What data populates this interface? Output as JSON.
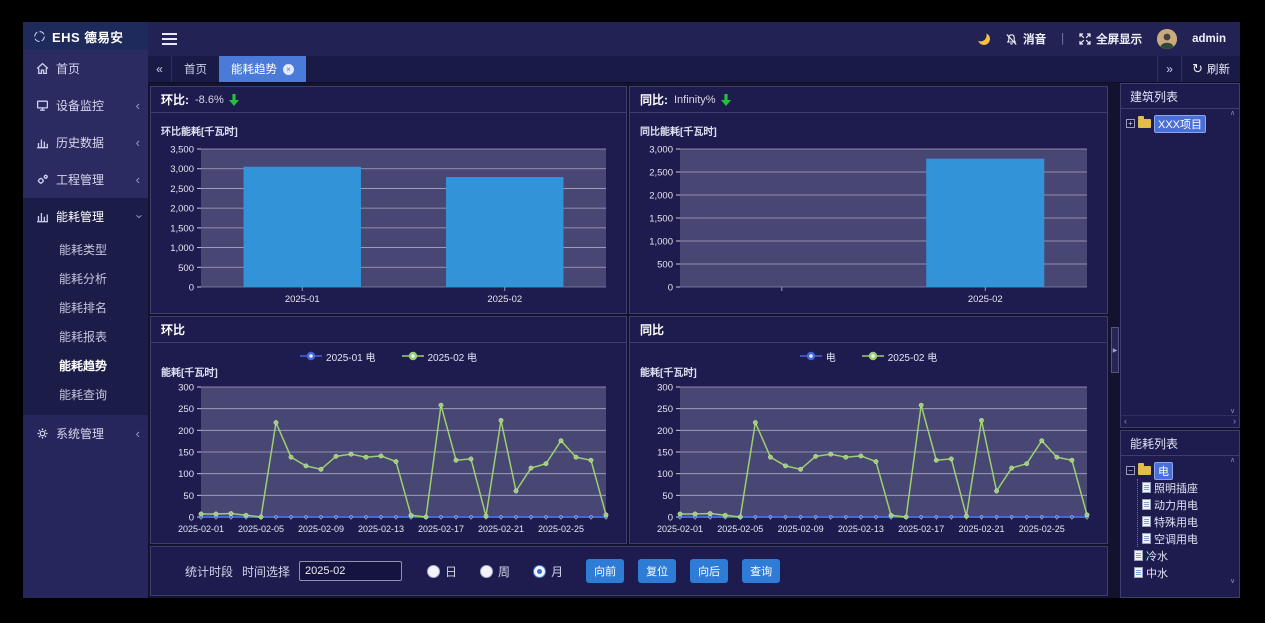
{
  "brand": {
    "name": "EHS",
    "suffix": "德易安"
  },
  "icons": {
    "tabs_left": "«",
    "tabs_right": "»",
    "refresh": "↻",
    "close": "×",
    "chevron_collapsed": "‹",
    "scroll_up": "∧",
    "scroll_down": "∨",
    "scroll_left": "‹",
    "scroll_right": "›",
    "expander_open": "−",
    "expander_closed": "+",
    "splitter_arrow": "▶"
  },
  "sidebar": {
    "items": [
      {
        "label": "首页"
      },
      {
        "label": "设备监控"
      },
      {
        "label": "历史数据"
      },
      {
        "label": "工程管理"
      },
      {
        "label": "能耗管理"
      },
      {
        "label": "系统管理"
      }
    ],
    "submenu": [
      "能耗类型",
      "能耗分析",
      "能耗排名",
      "能耗报表",
      "能耗趋势",
      "能耗查询"
    ],
    "active_submenu": "能耗趋势"
  },
  "topbar": {
    "mute_label": "消音",
    "divider": "|",
    "fullscreen_label": "全屏显示",
    "username": "admin"
  },
  "tabs": [
    {
      "label": "首页"
    },
    {
      "label": "能耗趋势"
    }
  ],
  "tabbar": {
    "refresh_label": "刷新"
  },
  "kpi": {
    "huanbi_label": "环比:",
    "huanbi_value": "-8.6%",
    "tongbi_label": "同比:",
    "tongbi_value": "Infinity%"
  },
  "sections": {
    "huanbi": "环比",
    "tongbi": "同比"
  },
  "right_panel": {
    "building_list": {
      "title": "建筑列表",
      "tree": [
        {
          "label": "XXX项目",
          "selected": true
        }
      ]
    },
    "energy_list": {
      "title": "能耗列表",
      "tree": [
        {
          "label": "电",
          "selected": true
        },
        {
          "label": "照明插座"
        },
        {
          "label": "动力用电"
        },
        {
          "label": "特殊用电"
        },
        {
          "label": "空调用电"
        },
        {
          "label": "冷水"
        },
        {
          "label": "中水"
        }
      ]
    }
  },
  "stats_bar": {
    "period_label": "统计时段",
    "time_label": "时间选择",
    "time_value": "2025-02",
    "radios": [
      {
        "label": "日"
      },
      {
        "label": "周"
      },
      {
        "label": "月",
        "checked": true
      }
    ],
    "buttons": [
      "向前",
      "复位",
      "向后",
      "查询"
    ]
  },
  "colors": {
    "plot_bg": "#484672",
    "grid": "#a8a8c4",
    "bar_blue": "#3393d9",
    "series_green": "#9ccf70",
    "series_blue": "#4466dd",
    "kpi_green": "#1fc437",
    "accent_blue": "#4a7bd8"
  },
  "chart_data": [
    {
      "type": "bar",
      "title": "环比能耗[千瓦时]",
      "categories": [
        "2025-01",
        "2025-02"
      ],
      "values": [
        3050,
        2790
      ],
      "ylim": [
        0,
        3500
      ],
      "ytick_step": 500,
      "grid": true,
      "legend_position": "none"
    },
    {
      "type": "bar",
      "title": "同比能耗[千瓦时]",
      "categories": [
        "",
        "2025-02"
      ],
      "values": [
        null,
        2790
      ],
      "ylim": [
        0,
        3000
      ],
      "ytick_step": 500,
      "grid": true,
      "legend_position": "none"
    },
    {
      "type": "line",
      "title": "能耗[千瓦时]",
      "x": [
        "2025-02-01",
        "2025-02-02",
        "2025-02-03",
        "2025-02-04",
        "2025-02-05",
        "2025-02-06",
        "2025-02-07",
        "2025-02-08",
        "2025-02-09",
        "2025-02-10",
        "2025-02-11",
        "2025-02-12",
        "2025-02-13",
        "2025-02-14",
        "2025-02-15",
        "2025-02-16",
        "2025-02-17",
        "2025-02-18",
        "2025-02-19",
        "2025-02-20",
        "2025-02-21",
        "2025-02-22",
        "2025-02-23",
        "2025-02-24",
        "2025-02-25",
        "2025-02-26",
        "2025-02-27",
        "2025-02-28"
      ],
      "xtick_every": 4,
      "ylim": [
        0,
        300
      ],
      "ytick_step": 50,
      "grid": true,
      "legend_position": "top",
      "series": [
        {
          "name": "2025-01 电",
          "color": "#4466dd",
          "values": [
            0,
            0,
            0,
            0,
            0,
            0,
            0,
            0,
            0,
            0,
            0,
            0,
            0,
            0,
            0,
            0,
            0,
            0,
            0,
            0,
            0,
            0,
            0,
            0,
            0,
            0,
            0,
            0
          ]
        },
        {
          "name": "2025-02 电",
          "color": "#9ccf70",
          "values": [
            7,
            7,
            8,
            4,
            0,
            218,
            138,
            118,
            110,
            140,
            145,
            138,
            141,
            128,
            4,
            0,
            258,
            131,
            134,
            2,
            223,
            60,
            113,
            123,
            176,
            138,
            131,
            5
          ]
        }
      ]
    },
    {
      "type": "line",
      "title": "能耗[千瓦时]",
      "x": [
        "2025-02-01",
        "2025-02-02",
        "2025-02-03",
        "2025-02-04",
        "2025-02-05",
        "2025-02-06",
        "2025-02-07",
        "2025-02-08",
        "2025-02-09",
        "2025-02-10",
        "2025-02-11",
        "2025-02-12",
        "2025-02-13",
        "2025-02-14",
        "2025-02-15",
        "2025-02-16",
        "2025-02-17",
        "2025-02-18",
        "2025-02-19",
        "2025-02-20",
        "2025-02-21",
        "2025-02-22",
        "2025-02-23",
        "2025-02-24",
        "2025-02-25",
        "2025-02-26",
        "2025-02-27",
        "2025-02-28"
      ],
      "xtick_every": 4,
      "ylim": [
        0,
        300
      ],
      "ytick_step": 50,
      "grid": true,
      "legend_position": "top",
      "series": [
        {
          "name": "电",
          "color": "#4466dd",
          "values": [
            0,
            0,
            0,
            0,
            0,
            0,
            0,
            0,
            0,
            0,
            0,
            0,
            0,
            0,
            0,
            0,
            0,
            0,
            0,
            0,
            0,
            0,
            0,
            0,
            0,
            0,
            0,
            0
          ]
        },
        {
          "name": "2025-02 电",
          "color": "#9ccf70",
          "values": [
            7,
            7,
            8,
            4,
            0,
            218,
            138,
            118,
            110,
            140,
            145,
            138,
            141,
            128,
            4,
            0,
            258,
            131,
            134,
            2,
            223,
            60,
            113,
            123,
            176,
            138,
            131,
            5
          ]
        }
      ]
    }
  ]
}
